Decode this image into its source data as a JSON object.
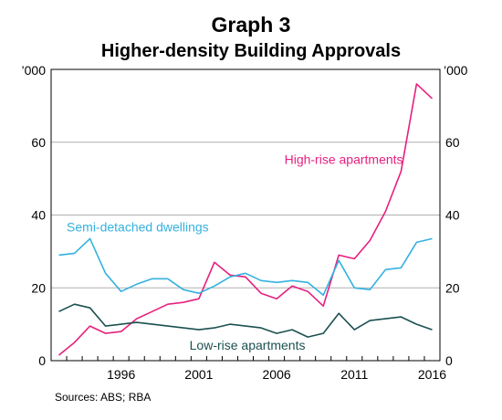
{
  "title": "Graph 3",
  "subtitle": "Higher-density Building Approvals",
  "source": "Sources: ABS; RBA",
  "chart_data": {
    "type": "line",
    "x": [
      1992,
      1993,
      1994,
      1995,
      1996,
      1997,
      1998,
      1999,
      2000,
      2001,
      2002,
      2003,
      2004,
      2005,
      2006,
      2007,
      2008,
      2009,
      2010,
      2011,
      2012,
      2013,
      2014,
      2015,
      2016
    ],
    "xticks": [
      "1996",
      "2001",
      "2006",
      "2011",
      "2016"
    ],
    "xlim": [
      1991.5,
      2016.5
    ],
    "ylim": [
      0,
      80
    ],
    "yticks": [
      0,
      20,
      40,
      60
    ],
    "yunit_label": "’000",
    "grid": true,
    "series": [
      {
        "name": "High-rise apartments",
        "color": "#e6207f",
        "values": [
          1.5,
          5.0,
          9.5,
          7.5,
          8.0,
          11.5,
          13.5,
          15.5,
          16.0,
          17.0,
          27.0,
          23.5,
          23.0,
          18.5,
          17.0,
          20.5,
          19.0,
          15.0,
          29.0,
          28.0,
          33.0,
          41.0,
          52.0,
          76.0,
          72.0
        ]
      },
      {
        "name": "Semi-detached dwellings",
        "color": "#34b1e0",
        "values": [
          29.0,
          29.5,
          33.5,
          24.0,
          19.0,
          21.0,
          22.5,
          22.5,
          19.5,
          18.5,
          20.5,
          23.0,
          24.0,
          22.0,
          21.5,
          22.0,
          21.5,
          18.0,
          27.5,
          20.0,
          19.5,
          25.0,
          25.5,
          32.5,
          33.5
        ]
      },
      {
        "name": "Low-rise apartments",
        "color": "#1b5050",
        "values": [
          13.5,
          15.5,
          14.5,
          9.5,
          10.0,
          10.5,
          10.0,
          9.5,
          9.0,
          8.5,
          9.0,
          10.0,
          9.5,
          9.0,
          7.5,
          8.5,
          6.5,
          7.5,
          13.0,
          8.5,
          11.0,
          11.5,
          12.0,
          10.0,
          8.5
        ]
      }
    ]
  }
}
